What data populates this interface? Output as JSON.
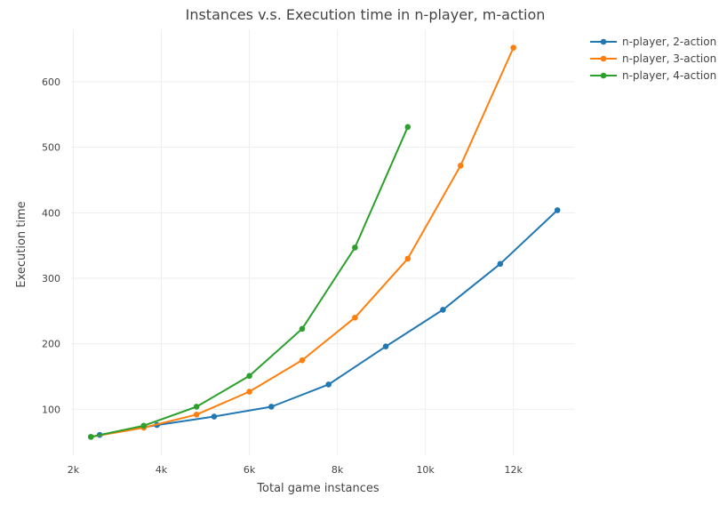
{
  "chart_data": {
    "type": "line",
    "title": "Instances v.s. Execution time in n-player, m-action",
    "xlabel": "Total game instances",
    "ylabel": "Execution time",
    "xlim": [
      1950,
      13400
    ],
    "ylim": [
      30,
      680
    ],
    "x_ticks": [
      2000,
      4000,
      6000,
      8000,
      10000,
      12000
    ],
    "x_tick_labels": [
      "2k",
      "4k",
      "6k",
      "8k",
      "10k",
      "12k"
    ],
    "y_ticks": [
      100,
      200,
      300,
      400,
      500,
      600
    ],
    "y_tick_labels": [
      "100",
      "200",
      "300",
      "400",
      "500",
      "600"
    ],
    "grid": true,
    "legend_position": "top-right",
    "series": [
      {
        "name": "n-player, 2-action",
        "color": "#1f77b4",
        "x": [
          2600,
          3900,
          5200,
          6500,
          7800,
          9100,
          10400,
          11700,
          13000
        ],
        "y": [
          61,
          76,
          89,
          104,
          138,
          196,
          252,
          322,
          404
        ]
      },
      {
        "name": "n-player, 3-action",
        "color": "#ff7f0e",
        "x": [
          2400,
          3600,
          4800,
          6000,
          7200,
          8400,
          9600,
          10800,
          12000
        ],
        "y": [
          58,
          72,
          92,
          127,
          175,
          240,
          330,
          472,
          652
        ]
      },
      {
        "name": "n-player, 4-action",
        "color": "#2ca02c",
        "x": [
          2400,
          3600,
          4800,
          6000,
          7200,
          8400,
          9600
        ],
        "y": [
          58,
          75,
          104,
          151,
          223,
          347,
          531
        ]
      }
    ]
  }
}
